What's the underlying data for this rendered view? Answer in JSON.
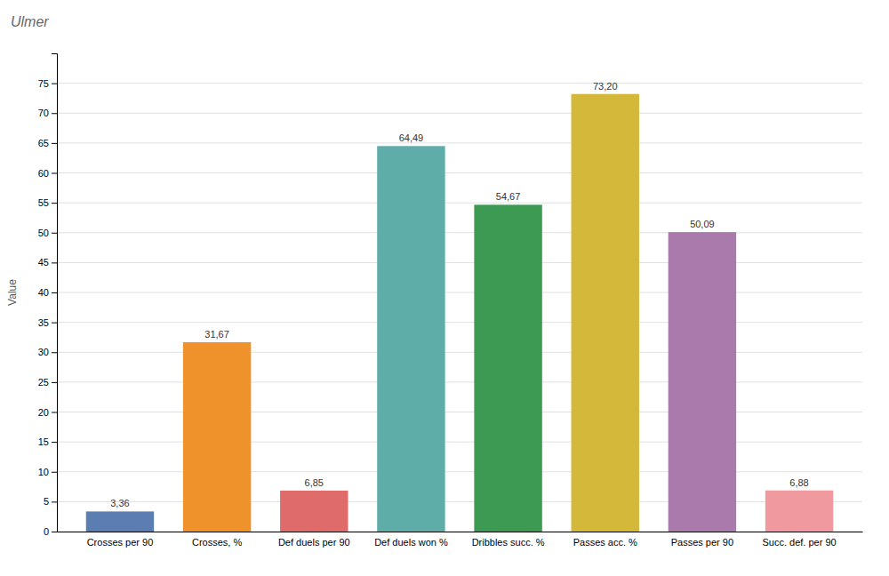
{
  "chart_data": {
    "type": "bar",
    "title": "Ulmer",
    "ylabel": "Value",
    "categories": [
      "Crosses per 90",
      "Crosses, %",
      "Def duels per 90",
      "Def duels won %",
      "Dribbles succ. %",
      "Passes acc. %",
      "Passes per 90",
      "Succ. def. per 90"
    ],
    "values": [
      3.36,
      31.67,
      6.85,
      64.49,
      54.67,
      73.2,
      50.09,
      6.88
    ],
    "value_labels": [
      "3,36",
      "31,67",
      "6,85",
      "64,49",
      "54,67",
      "73,20",
      "50,09",
      "6,88"
    ],
    "colors": [
      "#5b7db1",
      "#f0922b",
      "#e06b6b",
      "#5fada8",
      "#3d9a52",
      "#d4b83a",
      "#a97aab",
      "#f09aa0"
    ],
    "ylim": [
      0,
      80
    ],
    "yticks": [
      0,
      5,
      10,
      15,
      20,
      25,
      30,
      35,
      40,
      45,
      50,
      55,
      60,
      65,
      70,
      75
    ],
    "grid": true,
    "data_labels": true
  }
}
